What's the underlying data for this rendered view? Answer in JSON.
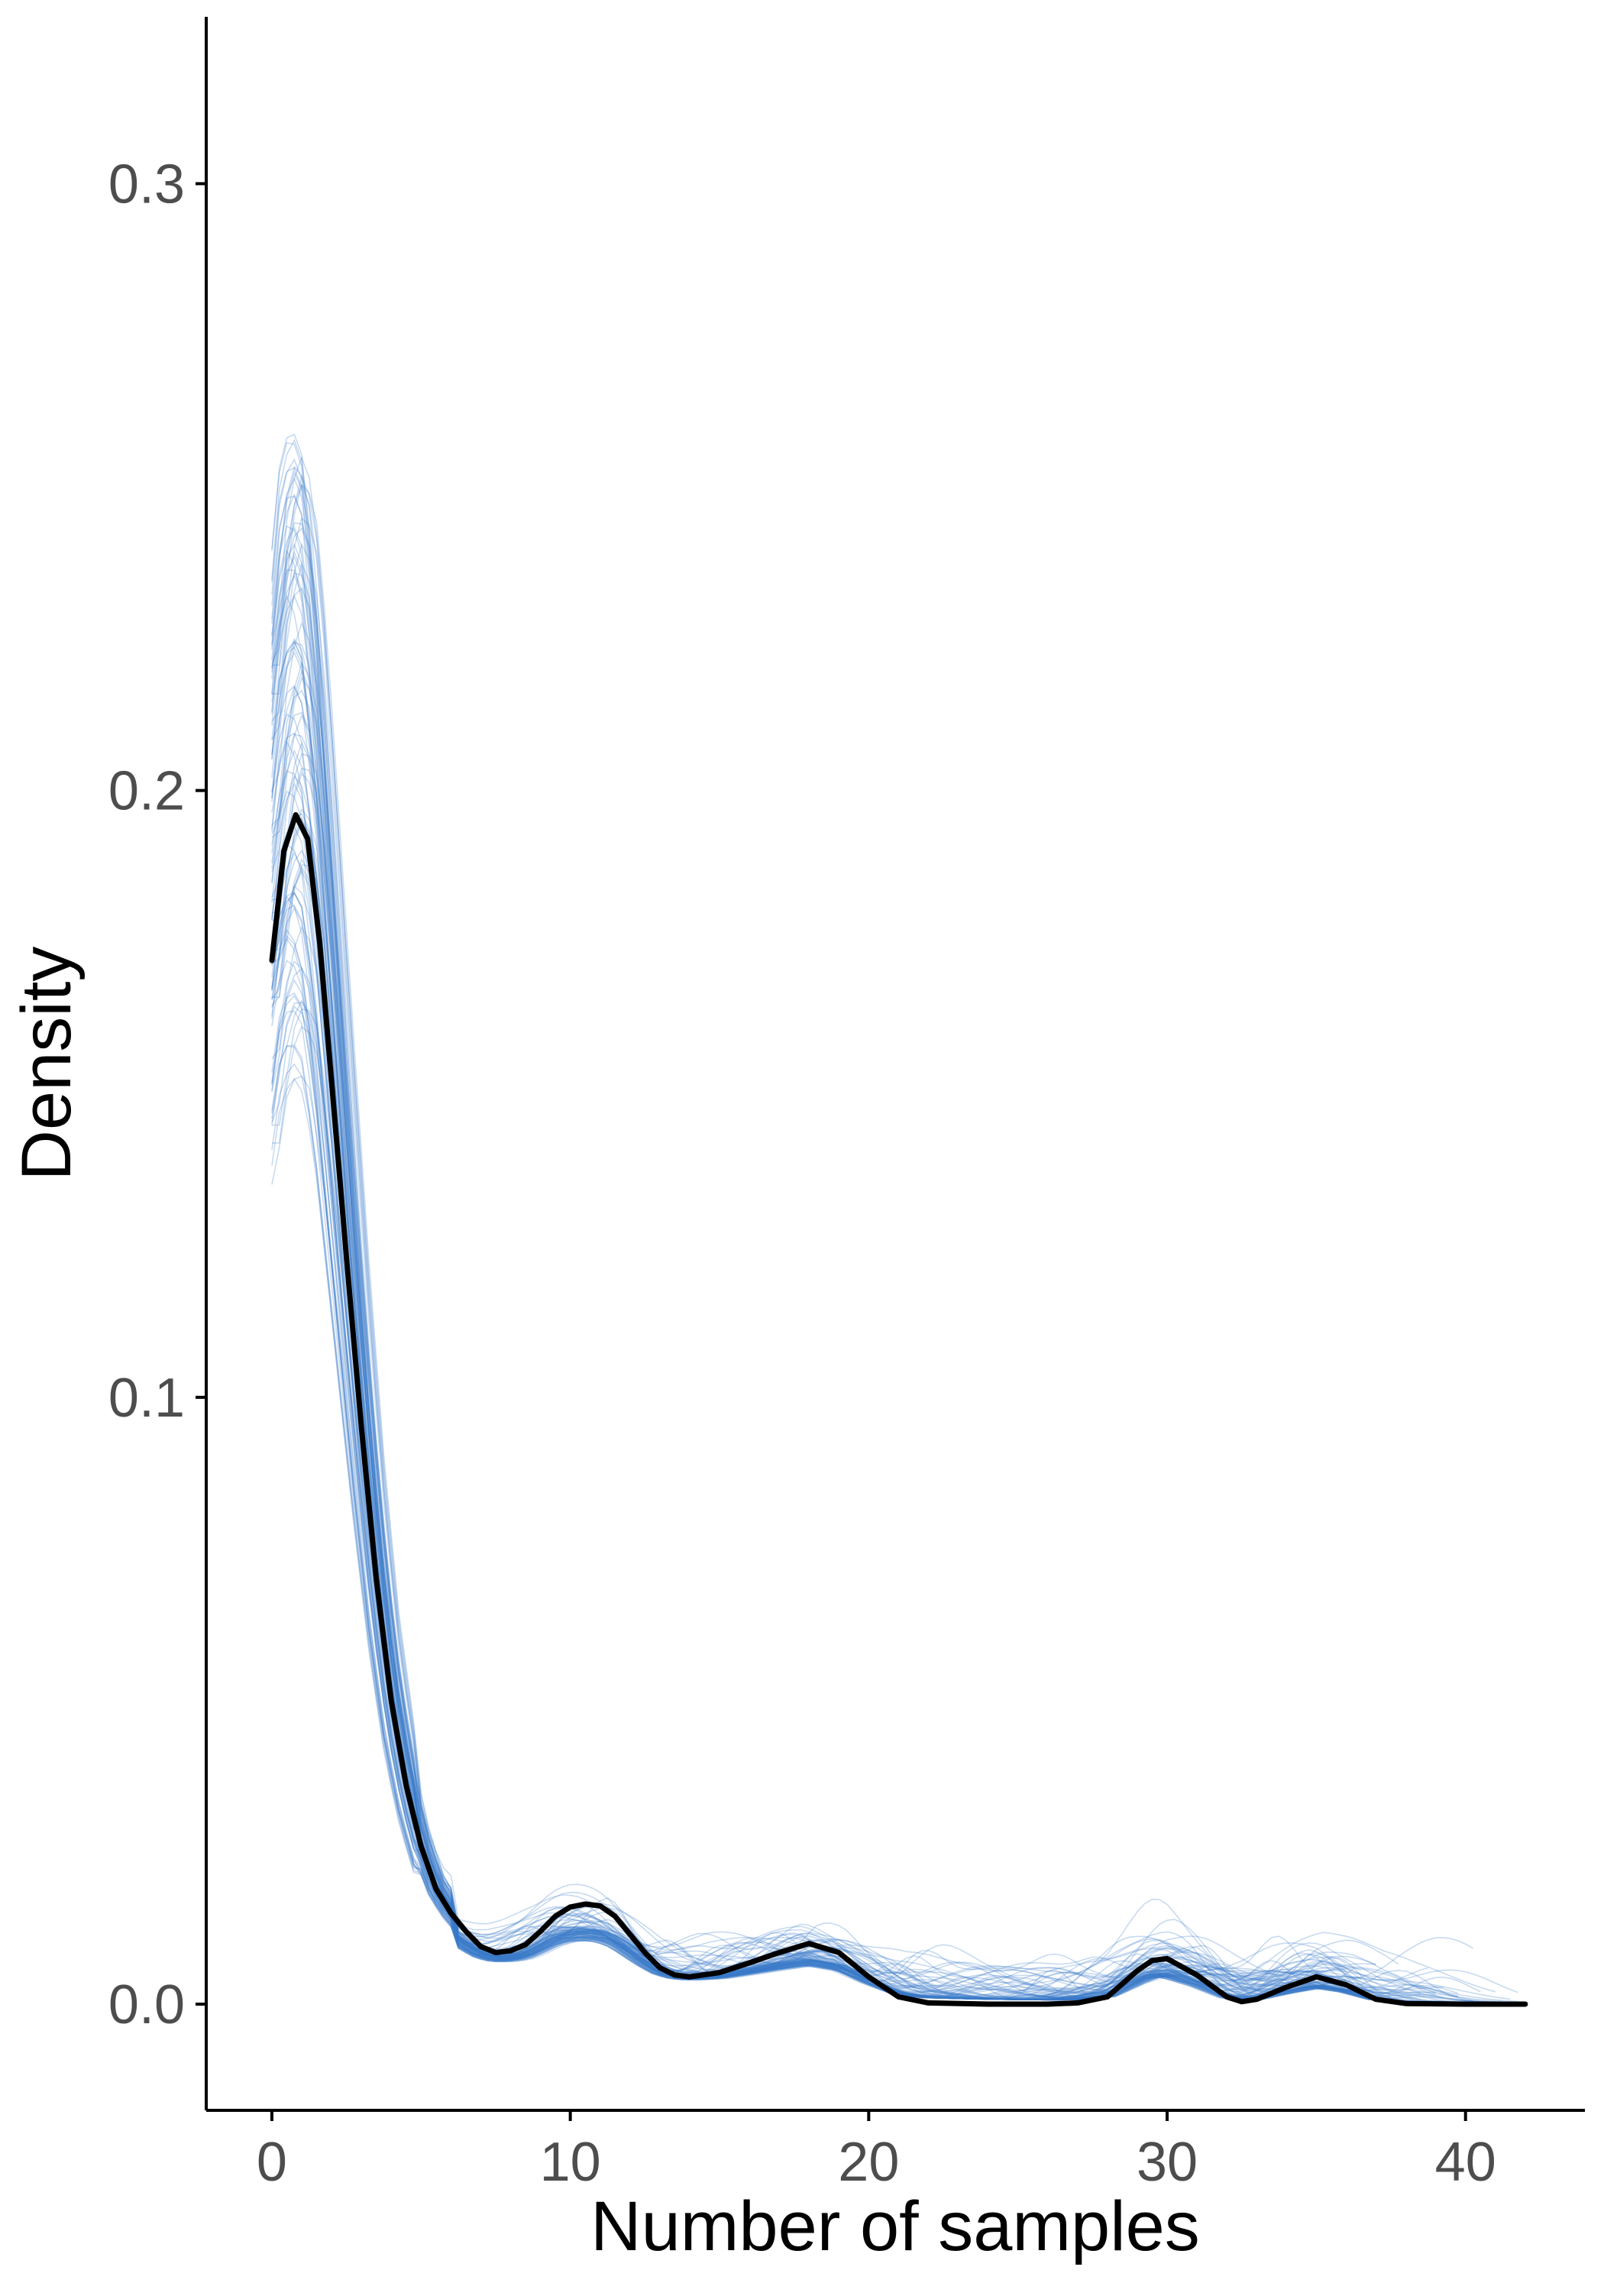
{
  "chart_data": {
    "type": "line",
    "title": "",
    "xlabel": "Number of samples",
    "ylabel": "Density",
    "xlim": [
      -2.2,
      44.0
    ],
    "ylim": [
      -0.0175,
      0.3275
    ],
    "x_ticks": [
      0,
      10,
      20,
      30,
      40
    ],
    "x_tick_labels": [
      "0",
      "10",
      "20",
      "30",
      "40"
    ],
    "y_ticks": [
      0.0,
      0.1,
      0.2,
      0.3
    ],
    "y_tick_labels": [
      "0.0",
      "0.1",
      "0.2",
      "0.3"
    ],
    "grid": false,
    "legend": "none",
    "colors": {
      "observed": "#000000",
      "replicates": "#3a7bc8",
      "axis": "#000000",
      "tick_text": "#4d4d4d"
    },
    "series": [
      {
        "role": "observed",
        "x": [
          0,
          0.4,
          0.8,
          1.2,
          1.6,
          2,
          2.5,
          3,
          3.5,
          4,
          4.5,
          5,
          5.5,
          6,
          6.5,
          7,
          7.5,
          8,
          8.5,
          9,
          9.5,
          10,
          10.5,
          11,
          11.5,
          12,
          12.5,
          13,
          13.5,
          14,
          15,
          16,
          17,
          18,
          19,
          20,
          21,
          22,
          24,
          26,
          27,
          28,
          29,
          29.5,
          30,
          31,
          32,
          32.5,
          33,
          34,
          35,
          36,
          37,
          38,
          40,
          42
        ],
        "values": [
          0.172,
          0.19,
          0.196,
          0.192,
          0.175,
          0.152,
          0.123,
          0.095,
          0.07,
          0.05,
          0.036,
          0.026,
          0.019,
          0.015,
          0.012,
          0.0095,
          0.0085,
          0.0088,
          0.0098,
          0.012,
          0.0145,
          0.016,
          0.0165,
          0.0162,
          0.0145,
          0.0115,
          0.0085,
          0.006,
          0.0048,
          0.0045,
          0.0052,
          0.0068,
          0.0085,
          0.01,
          0.0085,
          0.0045,
          0.0012,
          0.0002,
          0.0,
          0.0,
          0.0002,
          0.0012,
          0.0055,
          0.0072,
          0.0075,
          0.0048,
          0.0012,
          0.0004,
          0.0008,
          0.0028,
          0.0045,
          0.0032,
          0.0008,
          0.0001,
          0.0,
          0.0
        ]
      }
    ],
    "replicate_count": 100
  }
}
